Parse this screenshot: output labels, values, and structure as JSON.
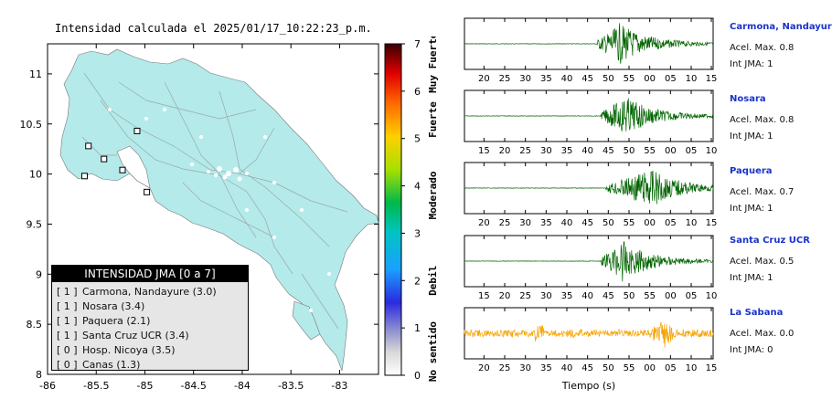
{
  "map": {
    "title": "Intensidad calculada el 2025/01/17_10:22:23_p.m.",
    "x_ticks": [
      "-86",
      "-85.5",
      "-85",
      "-84.5",
      "-84",
      "-83.5",
      "-83"
    ],
    "y_ticks": [
      "11",
      "10.5",
      "10",
      "9.5",
      "9",
      "8.5",
      "8"
    ],
    "land_color": "#b4eaea",
    "legend": {
      "header": "INTENSIDAD JMA [0 a 7]",
      "rows": [
        {
          "level": "[ 1 ]",
          "name": "Carmona, Nandayure (3.0)"
        },
        {
          "level": "[ 1 ]",
          "name": "Nosara (3.4)"
        },
        {
          "level": "[ 1 ]",
          "name": "Paquera (2.1)"
        },
        {
          "level": "[ 1 ]",
          "name": "Santa Cruz UCR (3.4)"
        },
        {
          "level": "[ 0 ]",
          "name": "Hosp. Nicoya (3.5)"
        },
        {
          "level": "[ 0 ]",
          "name": "Canas (1.3)"
        }
      ]
    }
  },
  "colorbar": {
    "ticks": [
      "0",
      "1",
      "2",
      "3",
      "4",
      "5",
      "6",
      "7"
    ],
    "categories": [
      "No sentido",
      "Debil",
      "Moderado",
      "Fuerte",
      "Muy Fuerte"
    ]
  },
  "waveforms": {
    "xlabel": "Tiempo (s)",
    "stations": [
      {
        "name": "Carmona, Nandayure",
        "accel": "Acel. Max. 0.8",
        "jma": "Int JMA: 1",
        "ticks": [
          "20",
          "25",
          "30",
          "35",
          "40",
          "45",
          "50",
          "55",
          "00",
          "05",
          "10",
          "15"
        ],
        "color": "#006400",
        "onset": 0.53,
        "peak": 0.62
      },
      {
        "name": "Nosara",
        "accel": "Acel. Max. 0.8",
        "jma": "Int JMA: 1",
        "ticks": [
          "15",
          "20",
          "25",
          "30",
          "35",
          "40",
          "45",
          "50",
          "55",
          "00",
          "05",
          "10"
        ],
        "color": "#006400",
        "onset": 0.55,
        "peak": 0.64
      },
      {
        "name": "Paquera",
        "accel": "Acel. Max. 0.7",
        "jma": "Int JMA: 1",
        "ticks": [
          "20",
          "25",
          "30",
          "35",
          "40",
          "45",
          "50",
          "55",
          "00",
          "05",
          "10",
          "15"
        ],
        "color": "#006400",
        "onset": 0.57,
        "peak": 0.74
      },
      {
        "name": "Santa Cruz UCR",
        "accel": "Acel. Max. 0.5",
        "jma": "Int JMA: 1",
        "ticks": [
          "15",
          "20",
          "25",
          "30",
          "35",
          "40",
          "45",
          "50",
          "55",
          "00",
          "05",
          "10"
        ],
        "color": "#006400",
        "onset": 0.55,
        "peak": 0.63
      },
      {
        "name": "La Sabana",
        "accel": "Acel. Max. 0.0",
        "jma": "Int JMA: 0",
        "ticks": [
          "20",
          "25",
          "30",
          "35",
          "40",
          "45",
          "50",
          "55",
          "00",
          "05",
          "10",
          "15"
        ],
        "color": "#f5a300",
        "onset": 0.0,
        "peak": 0.8
      }
    ]
  },
  "chart_data": [
    {
      "type": "scatter",
      "title": "Intensidad calculada el 2025/01/17_10:22:23_p.m.",
      "xlim": [
        -86,
        -82.6
      ],
      "ylim": [
        8,
        11.3
      ],
      "series": [
        {
          "name": "Carmona, Nandayure (3.0)",
          "x": [
            -85.23
          ],
          "y": [
            10.04
          ]
        },
        {
          "name": "Nosara (3.4)",
          "x": [
            -85.62
          ],
          "y": [
            9.98
          ]
        },
        {
          "name": "Paquera (2.1)",
          "x": [
            -84.98
          ],
          "y": [
            9.82
          ]
        },
        {
          "name": "Santa Cruz UCR (3.4)",
          "x": [
            -85.58
          ],
          "y": [
            10.28
          ]
        },
        {
          "name": "Hosp. Nicoya (3.5)",
          "x": [
            -85.42
          ],
          "y": [
            10.15
          ]
        },
        {
          "name": "Canas (1.3)",
          "x": [
            -85.08
          ],
          "y": [
            10.43
          ]
        }
      ],
      "legend": "bottom-left"
    },
    {
      "type": "heatmap",
      "title": "",
      "ylim": [
        0,
        7
      ],
      "ylabel": "",
      "categories": [
        "No sentido",
        "Debil",
        "Moderado",
        "Fuerte",
        "Muy Fuerte"
      ]
    },
    {
      "type": "line",
      "xlabel": "Tiempo (s)",
      "series": [
        {
          "name": "Carmona, Nandayure",
          "values": [
            0.8
          ]
        },
        {
          "name": "Nosara",
          "values": [
            0.8
          ]
        },
        {
          "name": "Paquera",
          "values": [
            0.7
          ]
        },
        {
          "name": "Santa Cruz UCR",
          "values": [
            0.5
          ]
        },
        {
          "name": "La Sabana",
          "values": [
            0.0
          ]
        }
      ]
    }
  ]
}
